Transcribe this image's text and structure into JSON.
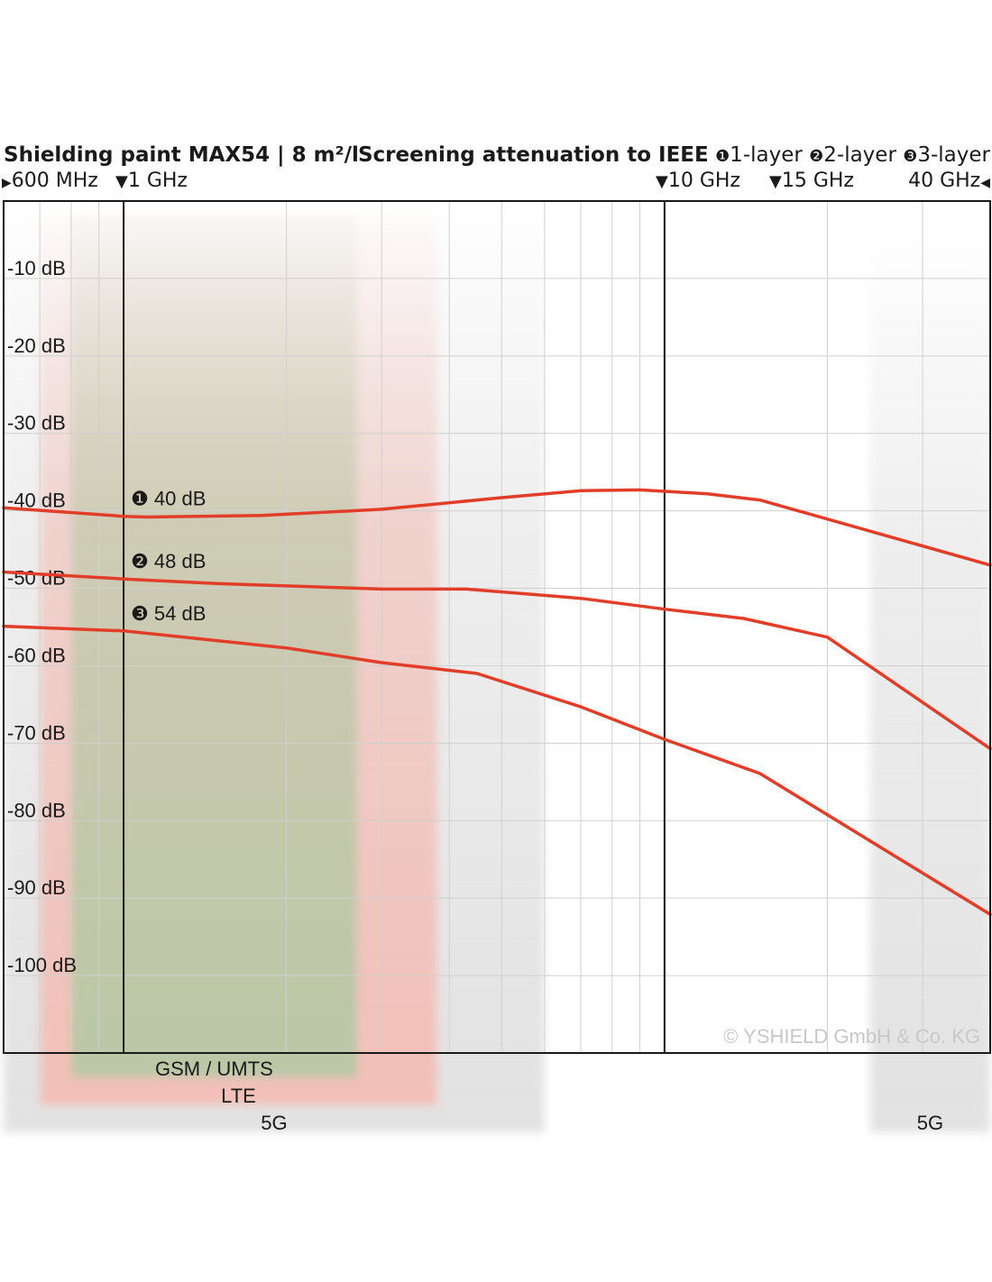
{
  "chart_data": {
    "type": "line",
    "title": "Shielding paint MAX54 | 8 m²/l",
    "subtitle": "Screening attenuation to IEEE",
    "legend": [
      {
        "symbol": "❶",
        "label": "1-layer"
      },
      {
        "symbol": "❷",
        "label": "2-layer"
      },
      {
        "symbol": "❸",
        "label": "3-layer"
      }
    ],
    "x_scale": "log",
    "x_unit": "GHz",
    "xlim": [
      0.6,
      40
    ],
    "frequency_markers": [
      {
        "label": "600 MHz",
        "x": 0.6
      },
      {
        "label": "1 GHz",
        "x": 1
      },
      {
        "label": "10 GHz",
        "x": 10
      },
      {
        "label": "15 GHz",
        "x": 15
      },
      {
        "label": "40 GHz",
        "x": 40
      }
    ],
    "y_unit": "dB",
    "ylim": [
      -110,
      0
    ],
    "yticks": [
      {
        "label": "-10 dB",
        "y": -10
      },
      {
        "label": "-20 dB",
        "y": -20
      },
      {
        "label": "-30 dB",
        "y": -30
      },
      {
        "label": "-40 dB",
        "y": -40
      },
      {
        "label": "-50 dB",
        "y": -50
      },
      {
        "label": "-60 dB",
        "y": -60
      },
      {
        "label": "-70 dB",
        "y": -70
      },
      {
        "label": "-80 dB",
        "y": -80
      },
      {
        "label": "-90 dB",
        "y": -90
      },
      {
        "label": "-100 dB",
        "y": -100
      }
    ],
    "grid": true,
    "bands": [
      {
        "label": "GSM / UMTS",
        "range": [
          0.8,
          2.7
        ],
        "color": "#b9c8a6"
      },
      {
        "label": "LTE",
        "range": [
          0.7,
          3.8
        ],
        "color": "#f2c0b8"
      },
      {
        "label": "5G",
        "range": [
          0.6,
          6
        ],
        "color": "#e2e2e2"
      },
      {
        "label": "5G",
        "range": [
          24,
          40
        ],
        "color": "#e2e2e2"
      }
    ],
    "series": [
      {
        "name": "1-layer",
        "annotation": "❶ 40 dB",
        "color": "#e23d28",
        "points": [
          [
            0.6,
            -39.6
          ],
          [
            1,
            -40.7
          ],
          [
            1.1,
            -40.8
          ],
          [
            1.8,
            -40.6
          ],
          [
            3,
            -39.8
          ],
          [
            5,
            -38.3
          ],
          [
            7,
            -37.4
          ],
          [
            9,
            -37.3
          ],
          [
            12,
            -37.8
          ],
          [
            15,
            -38.6
          ],
          [
            40,
            -47.0
          ]
        ]
      },
      {
        "name": "2-layer",
        "annotation": "❷ 48 dB",
        "color": "#e23d28",
        "points": [
          [
            0.6,
            -47.9
          ],
          [
            1,
            -48.8
          ],
          [
            1.5,
            -49.4
          ],
          [
            3,
            -50.1
          ],
          [
            4.3,
            -50.1
          ],
          [
            7,
            -51.3
          ],
          [
            10,
            -52.7
          ],
          [
            14,
            -53.9
          ],
          [
            20,
            -56.3
          ],
          [
            40,
            -70.7
          ]
        ]
      },
      {
        "name": "3-layer",
        "annotation": "❸ 54 dB",
        "color": "#e23d28",
        "points": [
          [
            0.6,
            -54.9
          ],
          [
            1,
            -55.5
          ],
          [
            2,
            -57.7
          ],
          [
            3,
            -59.6
          ],
          [
            4.5,
            -61.0
          ],
          [
            7,
            -65.3
          ],
          [
            10,
            -69.5
          ],
          [
            15,
            -73.9
          ],
          [
            40,
            -92.1
          ]
        ]
      }
    ]
  },
  "header": {
    "title": "Shielding paint MAX54 | 8 m²/l",
    "subtitle": "Screening attenuation to IEEE",
    "legend_symbols": [
      "❶",
      "❷",
      "❸"
    ],
    "legend_labels": [
      "1-layer",
      "2-layer",
      "3-layer"
    ],
    "start_arrow": "▶",
    "down_arrow": "▼",
    "end_arrow": "◀"
  },
  "copyright": "© YSHIELD GmbH & Co. KG"
}
